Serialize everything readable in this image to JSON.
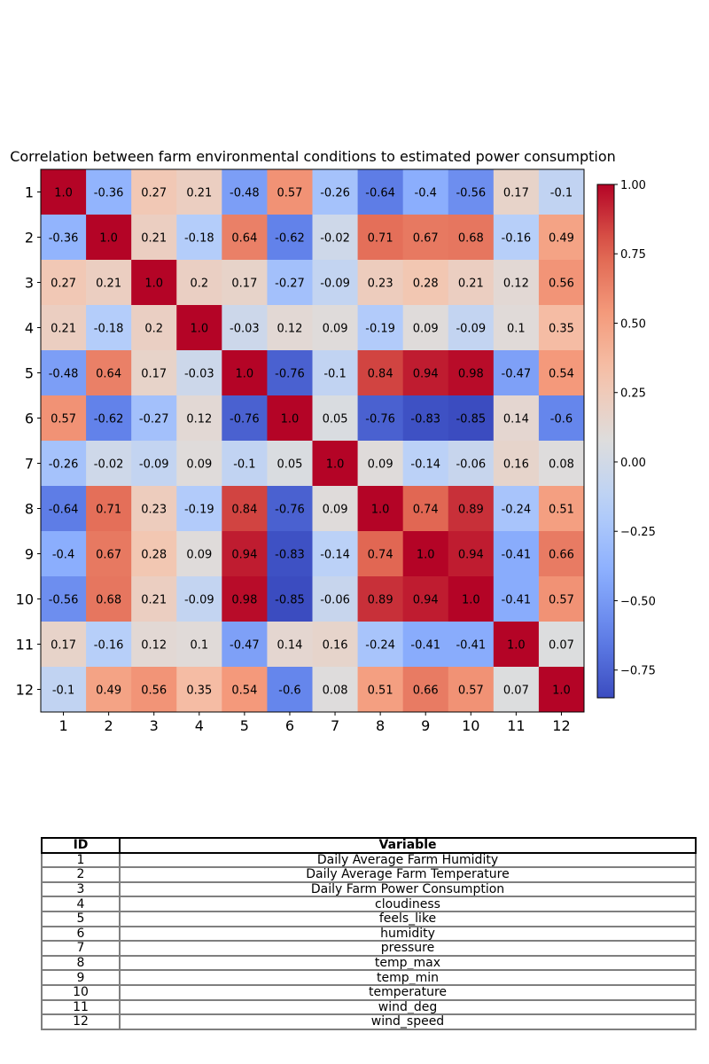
{
  "chart_data": {
    "type": "heatmap",
    "title": "Correlation between farm environmental conditions to estimated power consumption",
    "categories": [
      "1",
      "2",
      "3",
      "4",
      "5",
      "6",
      "7",
      "8",
      "9",
      "10",
      "11",
      "12"
    ],
    "matrix": [
      [
        1.0,
        -0.36,
        0.27,
        0.21,
        -0.48,
        0.57,
        -0.26,
        -0.64,
        -0.4,
        -0.56,
        0.17,
        -0.1
      ],
      [
        -0.36,
        1.0,
        0.21,
        -0.18,
        0.64,
        -0.62,
        -0.02,
        0.71,
        0.67,
        0.68,
        -0.16,
        0.49
      ],
      [
        0.27,
        0.21,
        1.0,
        0.2,
        0.17,
        -0.27,
        -0.09,
        0.23,
        0.28,
        0.21,
        0.12,
        0.56
      ],
      [
        0.21,
        -0.18,
        0.2,
        1.0,
        -0.03,
        0.12,
        0.09,
        -0.19,
        0.09,
        -0.09,
        0.1,
        0.35
      ],
      [
        -0.48,
        0.64,
        0.17,
        -0.03,
        1.0,
        -0.76,
        -0.1,
        0.84,
        0.94,
        0.98,
        -0.47,
        0.54
      ],
      [
        0.57,
        -0.62,
        -0.27,
        0.12,
        -0.76,
        1.0,
        0.05,
        -0.76,
        -0.83,
        -0.85,
        0.14,
        -0.6
      ],
      [
        -0.26,
        -0.02,
        -0.09,
        0.09,
        -0.1,
        0.05,
        1.0,
        0.09,
        -0.14,
        -0.06,
        0.16,
        0.08
      ],
      [
        -0.64,
        0.71,
        0.23,
        -0.19,
        0.84,
        -0.76,
        0.09,
        1.0,
        0.74,
        0.89,
        -0.24,
        0.51
      ],
      [
        -0.4,
        0.67,
        0.28,
        0.09,
        0.94,
        -0.83,
        -0.14,
        0.74,
        1.0,
        0.94,
        -0.41,
        0.66
      ],
      [
        -0.56,
        0.68,
        0.21,
        -0.09,
        0.98,
        -0.85,
        -0.06,
        0.89,
        0.94,
        1.0,
        -0.41,
        0.57
      ],
      [
        0.17,
        -0.16,
        0.12,
        0.1,
        -0.47,
        0.14,
        0.16,
        -0.24,
        -0.41,
        -0.41,
        1.0,
        0.07
      ],
      [
        -0.1,
        0.49,
        0.56,
        0.35,
        0.54,
        -0.6,
        0.08,
        0.51,
        0.66,
        0.57,
        0.07,
        1.0
      ]
    ],
    "cell_labels": [
      [
        "1.0",
        "-0.36",
        "0.27",
        "0.21",
        "-0.48",
        "0.57",
        "-0.26",
        "-0.64",
        "-0.4",
        "-0.56",
        "0.17",
        "-0.1"
      ],
      [
        "-0.36",
        "1.0",
        "0.21",
        "-0.18",
        "0.64",
        "-0.62",
        "-0.02",
        "0.71",
        "0.67",
        "0.68",
        "-0.16",
        "0.49"
      ],
      [
        "0.27",
        "0.21",
        "1.0",
        "0.2",
        "0.17",
        "-0.27",
        "-0.09",
        "0.23",
        "0.28",
        "0.21",
        "0.12",
        "0.56"
      ],
      [
        "0.21",
        "-0.18",
        "0.2",
        "1.0",
        "-0.03",
        "0.12",
        "0.09",
        "-0.19",
        "0.09",
        "-0.09",
        "0.1",
        "0.35"
      ],
      [
        "-0.48",
        "0.64",
        "0.17",
        "-0.03",
        "1.0",
        "-0.76",
        "-0.1",
        "0.84",
        "0.94",
        "0.98",
        "-0.47",
        "0.54"
      ],
      [
        "0.57",
        "-0.62",
        "-0.27",
        "0.12",
        "-0.76",
        "1.0",
        "0.05",
        "-0.76",
        "-0.83",
        "-0.85",
        "0.14",
        "-0.6"
      ],
      [
        "-0.26",
        "-0.02",
        "-0.09",
        "0.09",
        "-0.1",
        "0.05",
        "1.0",
        "0.09",
        "-0.14",
        "-0.06",
        "0.16",
        "0.08"
      ],
      [
        "-0.64",
        "0.71",
        "0.23",
        "-0.19",
        "0.84",
        "-0.76",
        "0.09",
        "1.0",
        "0.74",
        "0.89",
        "-0.24",
        "0.51"
      ],
      [
        "-0.4",
        "0.67",
        "0.28",
        "0.09",
        "0.94",
        "-0.83",
        "-0.14",
        "0.74",
        "1.0",
        "0.94",
        "-0.41",
        "0.66"
      ],
      [
        "-0.56",
        "0.68",
        "0.21",
        "-0.09",
        "0.98",
        "-0.85",
        "-0.06",
        "0.89",
        "0.94",
        "1.0",
        "-0.41",
        "0.57"
      ],
      [
        "0.17",
        "-0.16",
        "0.12",
        "0.1",
        "-0.47",
        "0.14",
        "0.16",
        "-0.24",
        "-0.41",
        "-0.41",
        "1.0",
        "0.07"
      ],
      [
        "-0.1",
        "0.49",
        "0.56",
        "0.35",
        "0.54",
        "-0.6",
        "0.08",
        "0.51",
        "0.66",
        "0.57",
        "0.07",
        "1.0"
      ]
    ],
    "colormap": "coolwarm",
    "colorbar": {
      "range": [
        -0.85,
        1.0
      ],
      "ticks": [
        -0.75,
        -0.5,
        -0.25,
        0.0,
        0.25,
        0.5,
        0.75,
        1.0
      ],
      "tick_labels": [
        "−0.75",
        "−0.50",
        "−0.25",
        "0.00",
        "0.25",
        "0.50",
        "0.75",
        "1.00"
      ]
    },
    "grid": false
  },
  "legend_table": {
    "headers": [
      "ID",
      "Variable"
    ],
    "rows": [
      [
        "1",
        "Daily Average Farm Humidity"
      ],
      [
        "2",
        "Daily Average Farm Temperature"
      ],
      [
        "3",
        "Daily Farm Power Consumption"
      ],
      [
        "4",
        "cloudiness"
      ],
      [
        "5",
        "feels_like"
      ],
      [
        "6",
        "humidity"
      ],
      [
        "7",
        "pressure"
      ],
      [
        "8",
        "temp_max"
      ],
      [
        "9",
        "temp_min"
      ],
      [
        "10",
        "temperature"
      ],
      [
        "11",
        "wind_deg"
      ],
      [
        "12",
        "wind_speed"
      ]
    ]
  }
}
